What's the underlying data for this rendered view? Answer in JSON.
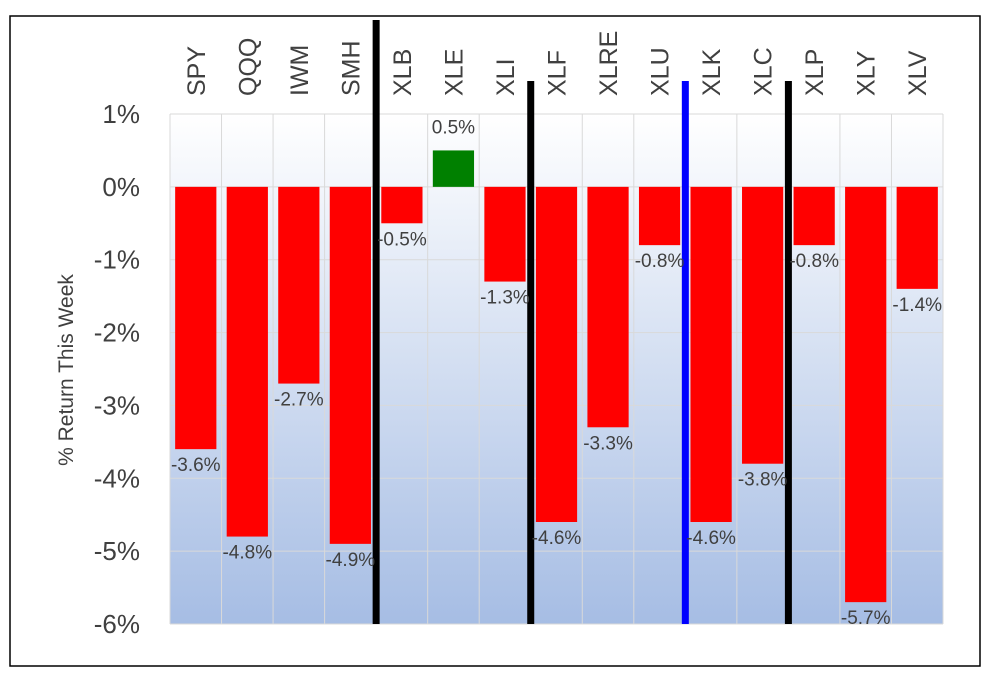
{
  "chart_data": {
    "type": "bar",
    "title": "",
    "xlabel": "",
    "ylabel": "% Return This Week",
    "categories": [
      "SPY",
      "QQQ",
      "IWM",
      "SMH",
      "XLB",
      "XLE",
      "XLI",
      "XLF",
      "XLRE",
      "XLU",
      "XLK",
      "XLC",
      "XLP",
      "XLY",
      "XLV"
    ],
    "values": [
      -3.6,
      -4.8,
      -2.7,
      -4.9,
      -0.5,
      0.5,
      -1.3,
      -4.6,
      -3.3,
      -0.8,
      -4.6,
      -3.8,
      -0.8,
      -5.7,
      -1.4
    ],
    "data_labels": [
      "-3.6%",
      "-4.8%",
      "-2.7%",
      "-4.9%",
      "-0.5%",
      "0.5%",
      "-1.3%",
      "-4.6%",
      "-3.3%",
      "-0.8%",
      "-4.6%",
      "-3.8%",
      "-0.8%",
      "-5.7%",
      "-1.4%"
    ],
    "ylim": [
      -6,
      1
    ],
    "y_ticks": [
      1,
      0,
      -1,
      -2,
      -3,
      -4,
      -5,
      -6
    ],
    "y_tick_labels": [
      "1%",
      "0%",
      "-1%",
      "-2%",
      "-3%",
      "-4%",
      "-5%",
      "-6%"
    ],
    "grid": true,
    "legend": "none",
    "x_tick_position": "top",
    "colors": {
      "negative": "#ff0000",
      "positive": "#008000",
      "separator": "#000000",
      "highlight_separator": "#0000ff",
      "plot_bg_top": "#ffffff",
      "plot_bg_bottom": "#a6bde4"
    },
    "separators": [
      {
        "after_category": "SMH",
        "color": "#000000"
      },
      {
        "after_category": "XLI",
        "color": "#000000"
      },
      {
        "after_category": "XLU",
        "color": "#0000ff"
      },
      {
        "after_category": "XLC",
        "color": "#000000"
      }
    ]
  }
}
